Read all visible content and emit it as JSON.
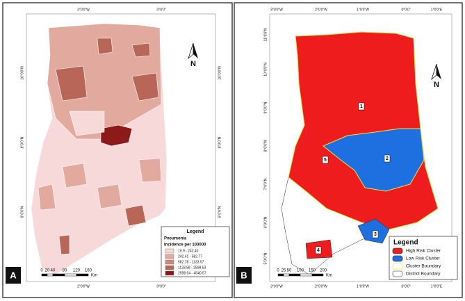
{
  "panel_a": {
    "label": "A",
    "top_labels": [
      "2°0'0\"W",
      "0°0'0\""
    ],
    "bottom_labels": [
      "2°0'0\"W",
      "0°0'0\""
    ],
    "left_labels": [
      "10°0'0\"N",
      "8°0'0\"N",
      "6°0'0\"N"
    ],
    "right_labels": [
      "10°0'0\"N",
      "8°0'0\"N",
      "6°0'0\"N"
    ],
    "north": "N",
    "legend": {
      "title": "Legend",
      "subtitle": "Pneumonia",
      "caption": "Incidence per 100000",
      "items": [
        "19.9 - 242.40",
        "242.41 - 582.77",
        "582.78 - 1133.57",
        "1133.58 - 2598.53",
        "2598.54 - 4540.57"
      ]
    },
    "scale": {
      "ticks": [
        "0",
        "20",
        "40",
        "80",
        "120",
        "160"
      ],
      "unit": "Km"
    }
  },
  "panel_b": {
    "label": "B",
    "top_labels": [
      "3°0'0\"W",
      "2°0'0\"W",
      "1°0'0\"W",
      "0°0'0\"",
      "1°0'0\"E"
    ],
    "bottom_labels": [
      "3°0'0\"W",
      "2°0'0\"W",
      "1°0'0\"W",
      "0°0'0\"",
      "1°0'0\"E"
    ],
    "left_labels": [
      "11°0'0\"N",
      "10°0'0\"N",
      "9°0'0\"N",
      "8°0'0\"N",
      "7°0'0\"N",
      "6°0'0\"N",
      "5°0'0\"N"
    ],
    "north": "N",
    "clusters": [
      "1",
      "2",
      "3",
      "4",
      "5"
    ],
    "legend": {
      "title": "Legend",
      "items": [
        "High Risk Cluster",
        "Low Risk Cluster",
        "Cluster Boundary",
        "District Boundary"
      ]
    },
    "scale": {
      "ticks": [
        "0",
        "25",
        "50",
        "100",
        "150",
        "200"
      ],
      "unit": "Km"
    }
  }
}
